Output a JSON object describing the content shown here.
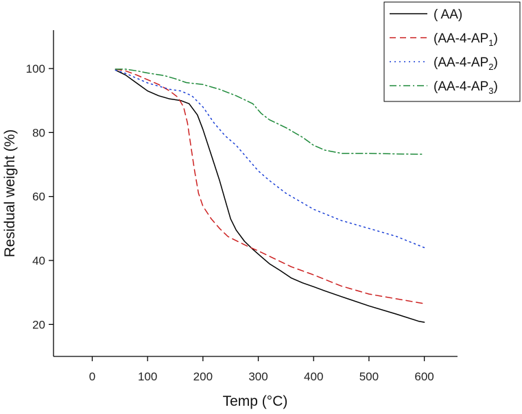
{
  "chart_data": {
    "type": "line",
    "title": "",
    "xlabel": "Temp (°C)",
    "ylabel": "Residual weight (%)",
    "xlim": [
      -70,
      660
    ],
    "ylim": [
      10,
      112
    ],
    "xticks": [
      0,
      100,
      200,
      300,
      400,
      500,
      600
    ],
    "yticks": [
      20,
      40,
      60,
      80,
      100
    ],
    "grid": false,
    "legend_position": "top-right",
    "series": [
      {
        "name": "( AA)",
        "label_main": "( AA)",
        "label_sub": "",
        "color": "#000000",
        "dash": "solid",
        "points": [
          [
            42,
            99.5
          ],
          [
            60,
            98
          ],
          [
            80,
            95.5
          ],
          [
            100,
            93
          ],
          [
            120,
            91.5
          ],
          [
            140,
            90.5
          ],
          [
            160,
            90
          ],
          [
            175,
            89
          ],
          [
            190,
            85.5
          ],
          [
            200,
            81
          ],
          [
            215,
            73
          ],
          [
            230,
            65
          ],
          [
            240,
            59
          ],
          [
            250,
            53
          ],
          [
            260,
            49.5
          ],
          [
            275,
            46
          ],
          [
            290,
            43.5
          ],
          [
            300,
            42
          ],
          [
            320,
            39
          ],
          [
            340,
            36.8
          ],
          [
            360,
            34.5
          ],
          [
            380,
            33
          ],
          [
            400,
            31.8
          ],
          [
            420,
            30.5
          ],
          [
            450,
            28.7
          ],
          [
            500,
            25.8
          ],
          [
            550,
            23.2
          ],
          [
            590,
            21
          ],
          [
            600,
            20.7
          ]
        ]
      },
      {
        "name": "(AA-4-AP1)",
        "label_main": "(AA-4-AP",
        "label_sub": "1",
        "color": "#cc2020",
        "dash": "dashed",
        "points": [
          [
            42,
            99.8
          ],
          [
            60,
            99.3
          ],
          [
            80,
            98
          ],
          [
            100,
            96.5
          ],
          [
            120,
            95
          ],
          [
            140,
            93
          ],
          [
            155,
            91
          ],
          [
            165,
            88
          ],
          [
            172,
            83
          ],
          [
            178,
            76
          ],
          [
            185,
            68
          ],
          [
            192,
            61
          ],
          [
            200,
            57
          ],
          [
            215,
            53
          ],
          [
            230,
            50
          ],
          [
            245,
            47.5
          ],
          [
            260,
            46.2
          ],
          [
            280,
            44.5
          ],
          [
            300,
            43
          ],
          [
            330,
            40.5
          ],
          [
            360,
            38
          ],
          [
            400,
            35.5
          ],
          [
            450,
            32
          ],
          [
            500,
            29.5
          ],
          [
            550,
            28
          ],
          [
            600,
            26.5
          ]
        ]
      },
      {
        "name": "(AA-4-AP2)",
        "label_main": "(AA-4-AP",
        "label_sub": "2",
        "color": "#1a3fd6",
        "dash": "dotted",
        "points": [
          [
            42,
            99.5
          ],
          [
            60,
            98.5
          ],
          [
            80,
            97
          ],
          [
            100,
            95.5
          ],
          [
            120,
            94.5
          ],
          [
            140,
            93.5
          ],
          [
            160,
            93
          ],
          [
            180,
            91.5
          ],
          [
            200,
            88
          ],
          [
            220,
            83
          ],
          [
            240,
            79
          ],
          [
            260,
            76
          ],
          [
            280,
            72
          ],
          [
            300,
            68
          ],
          [
            320,
            65
          ],
          [
            350,
            61
          ],
          [
            380,
            58
          ],
          [
            400,
            56
          ],
          [
            450,
            52.5
          ],
          [
            500,
            50
          ],
          [
            550,
            47.5
          ],
          [
            600,
            44
          ]
        ]
      },
      {
        "name": "(AA-4-AP3)",
        "label_main": "(AA-4-AP",
        "label_sub": "3",
        "color": "#1e8a3a",
        "dash": "dashdot",
        "points": [
          [
            42,
            99.8
          ],
          [
            60,
            99.8
          ],
          [
            80,
            99.3
          ],
          [
            100,
            98.6
          ],
          [
            130,
            97.8
          ],
          [
            150,
            96.8
          ],
          [
            170,
            95.6
          ],
          [
            200,
            95
          ],
          [
            230,
            93.5
          ],
          [
            260,
            91.5
          ],
          [
            290,
            89
          ],
          [
            305,
            86
          ],
          [
            320,
            84
          ],
          [
            350,
            81.5
          ],
          [
            380,
            78.5
          ],
          [
            400,
            76
          ],
          [
            420,
            74.5
          ],
          [
            450,
            73.5
          ],
          [
            500,
            73.5
          ],
          [
            550,
            73.3
          ],
          [
            600,
            73.2
          ]
        ]
      }
    ]
  }
}
